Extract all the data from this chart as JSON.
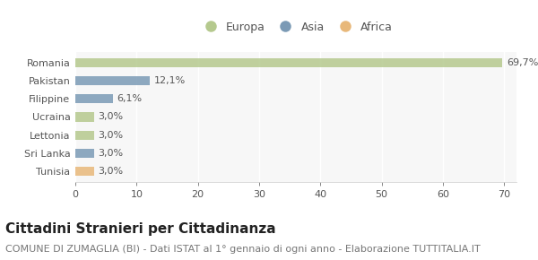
{
  "categories": [
    "Romania",
    "Pakistan",
    "Filippine",
    "Ucraina",
    "Lettonia",
    "Sri Lanka",
    "Tunisia"
  ],
  "values": [
    69.7,
    12.1,
    6.1,
    3.0,
    3.0,
    3.0,
    3.0
  ],
  "labels": [
    "69,7%",
    "12,1%",
    "6,1%",
    "3,0%",
    "3,0%",
    "3,0%",
    "3,0%"
  ],
  "colors": [
    "#b5c98e",
    "#7b9ab5",
    "#7b9ab5",
    "#b5c98e",
    "#b5c98e",
    "#7b9ab5",
    "#e8b87a"
  ],
  "legend": [
    {
      "label": "Europa",
      "color": "#b5c98e"
    },
    {
      "label": "Asia",
      "color": "#7b9ab5"
    },
    {
      "label": "Africa",
      "color": "#e8b87a"
    }
  ],
  "xlim": [
    0,
    72
  ],
  "xticks": [
    0,
    10,
    20,
    30,
    40,
    50,
    60,
    70
  ],
  "title": "Cittadini Stranieri per Cittadinanza",
  "subtitle": "COMUNE DI ZUMAGLIA (BI) - Dati ISTAT al 1° gennaio di ogni anno - Elaborazione TUTTITALIA.IT",
  "background_color": "#ffffff",
  "plot_bg_color": "#f7f7f7",
  "grid_color": "#ffffff",
  "bar_height": 0.5,
  "title_fontsize": 11,
  "subtitle_fontsize": 8,
  "label_fontsize": 8,
  "tick_fontsize": 8,
  "legend_fontsize": 9
}
